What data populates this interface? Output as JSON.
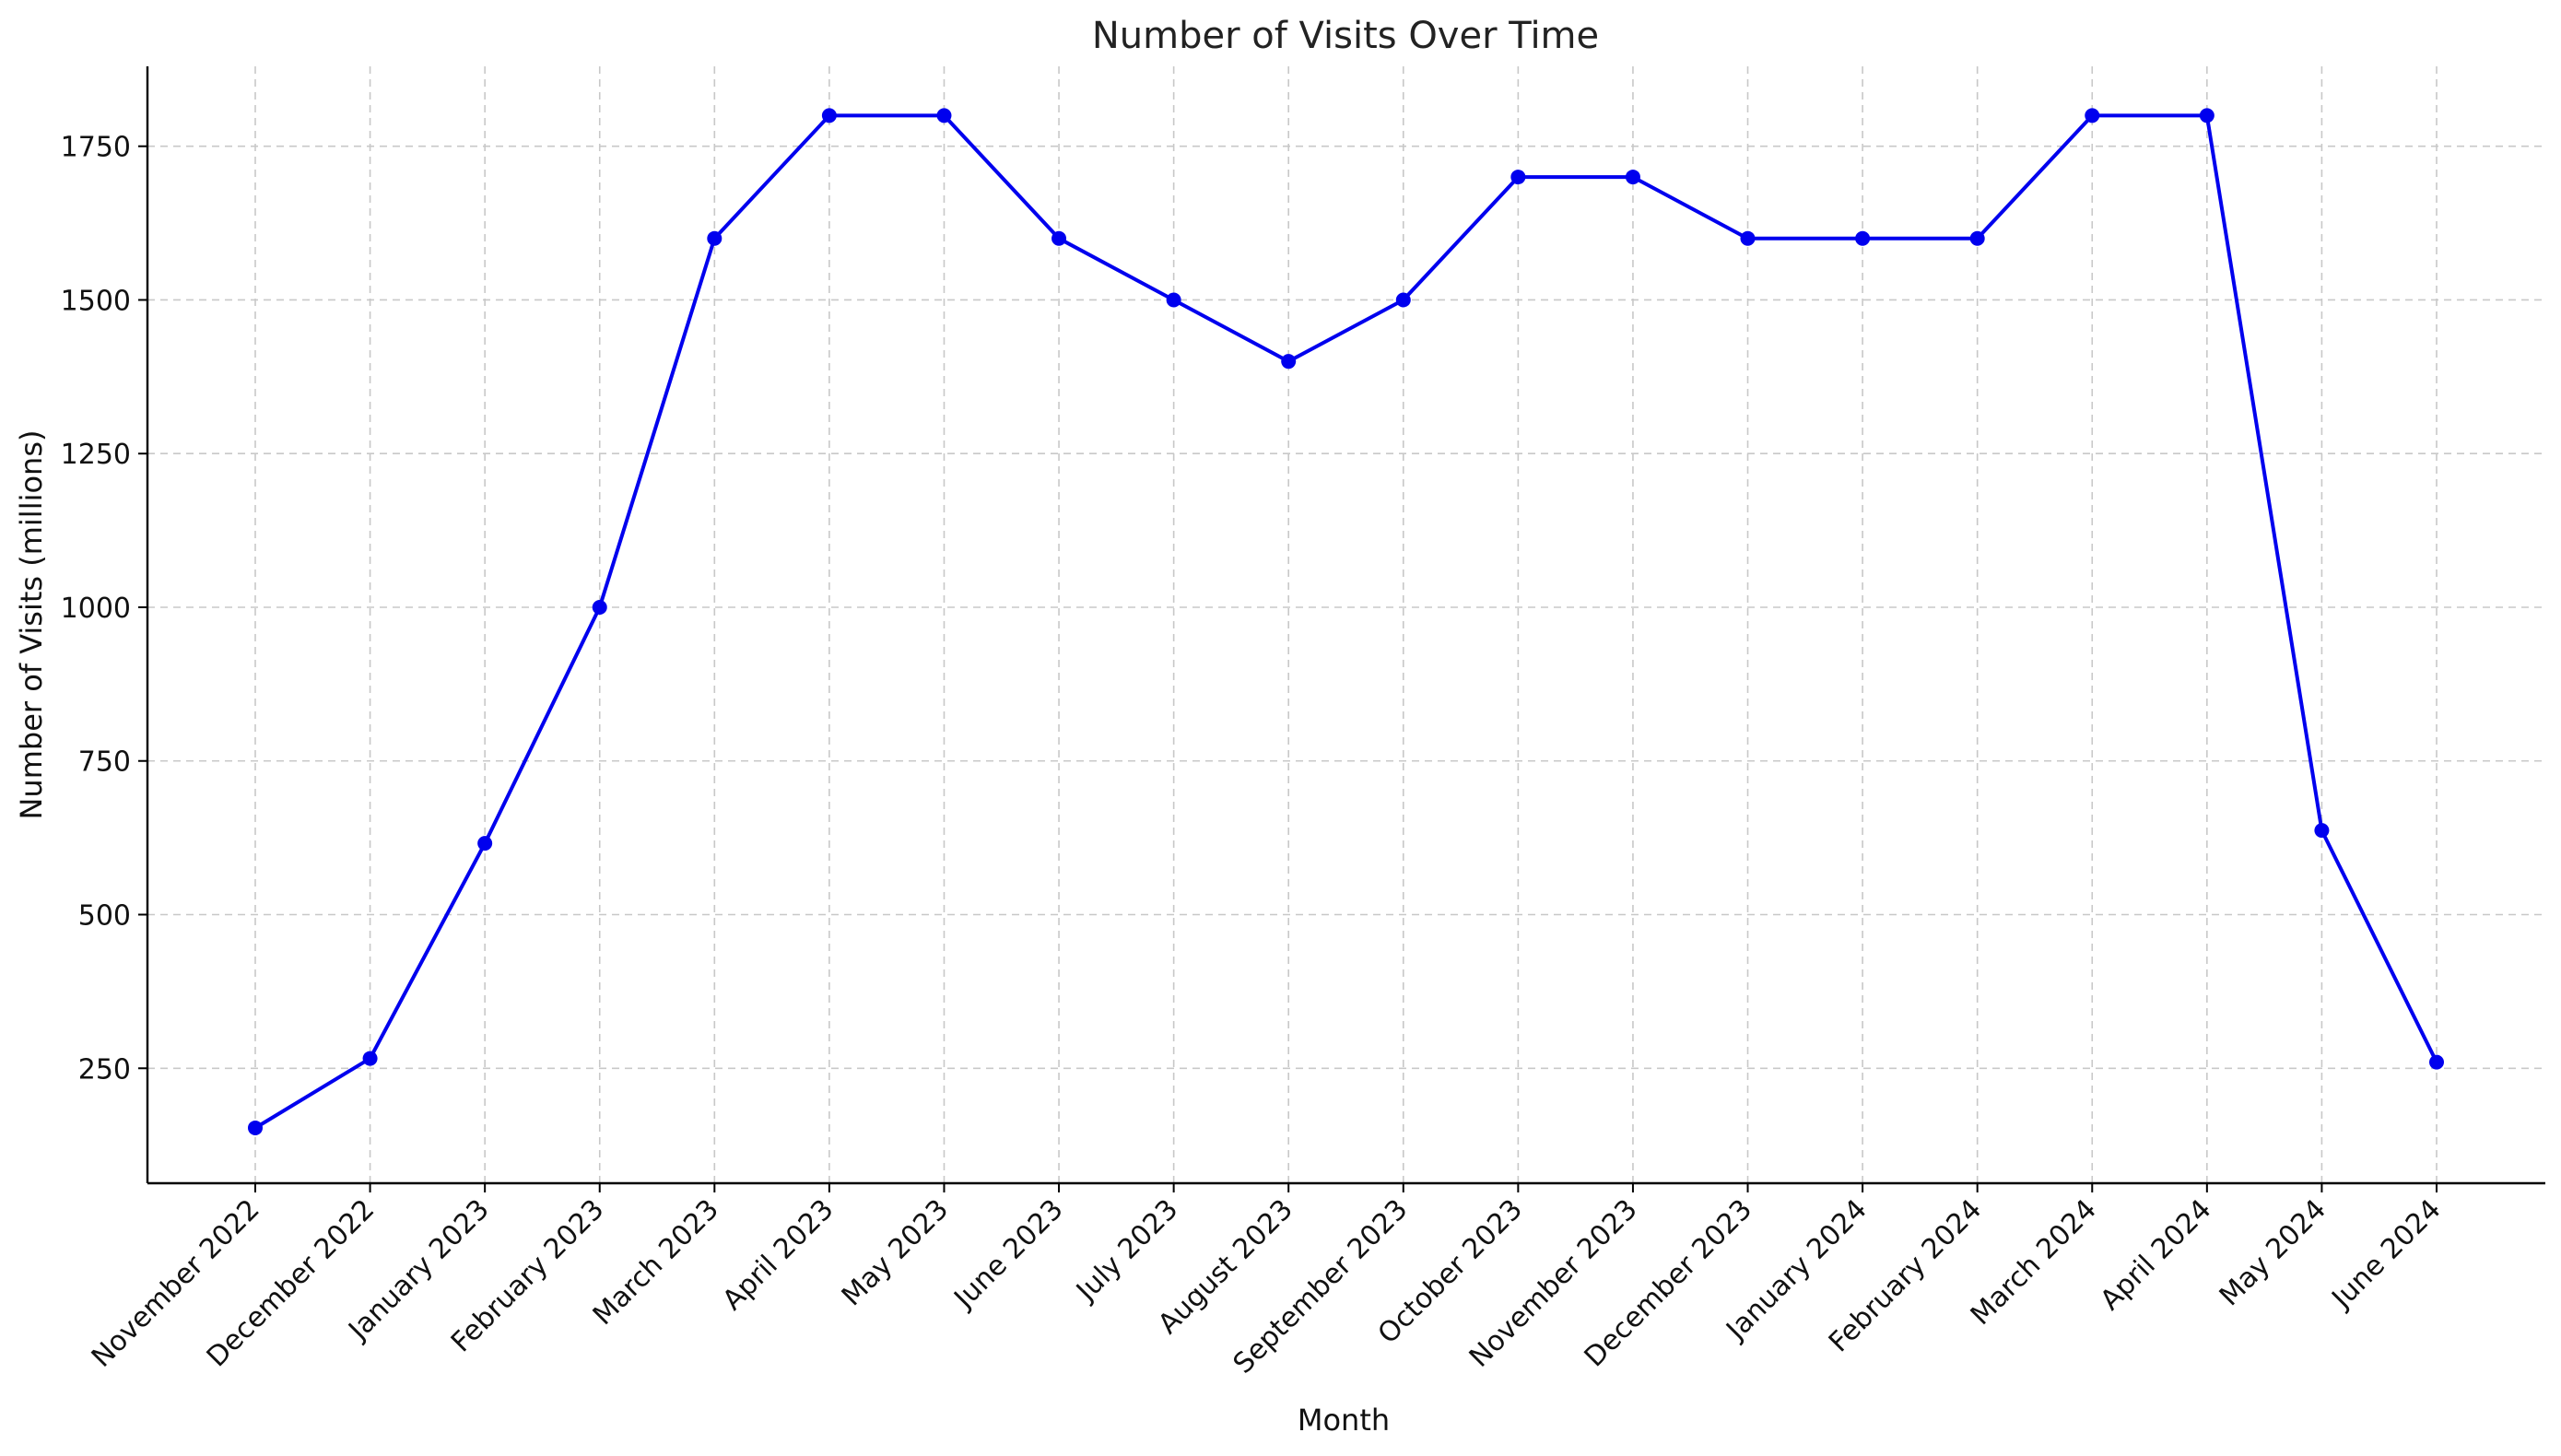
{
  "chart_data": {
    "type": "line",
    "title": "Number of Visits Over Time",
    "xlabel": "Month",
    "ylabel": "Number of Visits (millions)",
    "categories": [
      "November 2022",
      "December 2022",
      "January 2023",
      "February 2023",
      "March 2023",
      "April 2023",
      "May 2023",
      "June 2023",
      "July 2023",
      "August 2023",
      "September 2023",
      "October 2023",
      "November 2023",
      "December 2023",
      "January 2024",
      "February 2024",
      "March 2024",
      "April 2024",
      "May 2024",
      "June 2024"
    ],
    "series": [
      {
        "values": [
          153,
          266,
          616,
          1000,
          1600,
          1800,
          1800,
          1600,
          1500,
          1400,
          1500,
          1700,
          1700,
          1600,
          1600,
          1600,
          1800,
          1800,
          637,
          260
        ],
        "color": "#0000ee",
        "marker": "circle"
      }
    ],
    "yticks": [
      "250",
      "500",
      "750",
      "1000",
      "1250",
      "1500",
      "1750"
    ],
    "ylim": [
      63,
      1880
    ],
    "grid": true,
    "legend": "none"
  }
}
